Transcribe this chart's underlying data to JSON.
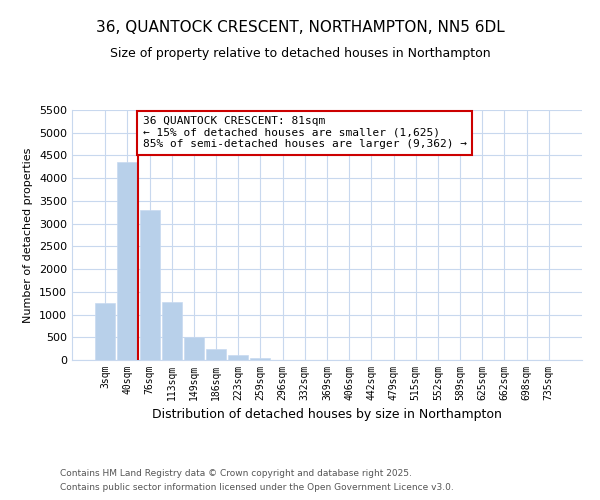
{
  "title": "36, QUANTOCK CRESCENT, NORTHAMPTON, NN5 6DL",
  "subtitle": "Size of property relative to detached houses in Northampton",
  "xlabel": "Distribution of detached houses by size in Northampton",
  "ylabel": "Number of detached properties",
  "footer1": "Contains HM Land Registry data © Crown copyright and database right 2025.",
  "footer2": "Contains public sector information licensed under the Open Government Licence v3.0.",
  "annotation_line1": "36 QUANTOCK CRESCENT: 81sqm",
  "annotation_line2": "← 15% of detached houses are smaller (1,625)",
  "annotation_line3": "85% of semi-detached houses are larger (9,362) →",
  "bar_color": "#b8d0ea",
  "bar_edge_color": "#c8daf0",
  "vline_color": "#cc0000",
  "annotation_box_edgecolor": "#cc0000",
  "annotation_box_facecolor": "#ffffff",
  "background_color": "#ffffff",
  "grid_color": "#c8d8ee",
  "title_fontsize": 11,
  "subtitle_fontsize": 9,
  "categories": [
    "3sqm",
    "40sqm",
    "76sqm",
    "113sqm",
    "149sqm",
    "186sqm",
    "223sqm",
    "259sqm",
    "296sqm",
    "332sqm",
    "369sqm",
    "406sqm",
    "442sqm",
    "479sqm",
    "515sqm",
    "552sqm",
    "589sqm",
    "625sqm",
    "662sqm",
    "698sqm",
    "735sqm"
  ],
  "values": [
    1260,
    4360,
    3300,
    1280,
    500,
    250,
    100,
    50,
    10,
    5,
    2,
    2,
    0,
    0,
    0,
    0,
    0,
    0,
    0,
    0,
    0
  ],
  "vline_index": 2,
  "ylim": [
    0,
    5500
  ],
  "yticks": [
    0,
    500,
    1000,
    1500,
    2000,
    2500,
    3000,
    3500,
    4000,
    4500,
    5000,
    5500
  ]
}
